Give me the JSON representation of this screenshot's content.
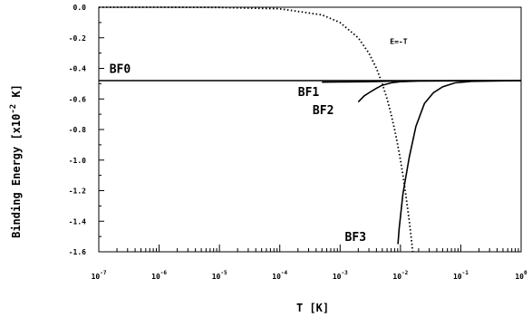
{
  "chart_data": {
    "type": "line",
    "title": "",
    "xlabel": "T [K]",
    "ylabel_text": "Binding Energy [x10",
    "ylabel_exponent": "-2",
    "ylabel_unit": " K]",
    "x_scale": "log",
    "xlim": [
      1e-07,
      1
    ],
    "ylim": [
      -1.6,
      0.0
    ],
    "grid": false,
    "x_ticks": [
      {
        "value": 1e-07,
        "base": "10",
        "exp": "-7"
      },
      {
        "value": 1e-06,
        "base": "10",
        "exp": "-6"
      },
      {
        "value": 1e-05,
        "base": "10",
        "exp": "-5"
      },
      {
        "value": 0.0001,
        "base": "10",
        "exp": "-4"
      },
      {
        "value": 0.001,
        "base": "10",
        "exp": "-3"
      },
      {
        "value": 0.01,
        "base": "10",
        "exp": "-2"
      },
      {
        "value": 0.1,
        "base": "10",
        "exp": "-1"
      },
      {
        "value": 1,
        "base": "10",
        "exp": "0"
      }
    ],
    "y_ticks": [
      {
        "value": 0.0,
        "label": "0.0"
      },
      {
        "value": -0.2,
        "label": "-0.2"
      },
      {
        "value": -0.4,
        "label": "-0.4"
      },
      {
        "value": -0.6,
        "label": "-0.6"
      },
      {
        "value": -0.8,
        "label": "-0.8"
      },
      {
        "value": -1.0,
        "label": "-1.0"
      },
      {
        "value": -1.2,
        "label": "-1.2"
      },
      {
        "value": -1.4,
        "label": "-1.4"
      },
      {
        "value": -1.6,
        "label": "-1.6"
      }
    ],
    "series": [
      {
        "name": "BF0",
        "style": "solid",
        "x": [
          1e-07,
          1e-06,
          1e-05,
          0.0001,
          0.001,
          0.01,
          0.1,
          1
        ],
        "y": [
          -0.48,
          -0.48,
          -0.48,
          -0.48,
          -0.48,
          -0.48,
          -0.48,
          -0.48
        ]
      },
      {
        "name": "BF1",
        "style": "solid",
        "x": [
          0.0005,
          0.001,
          0.002,
          0.003,
          0.005,
          0.01,
          0.1,
          1
        ],
        "y": [
          -0.49,
          -0.489,
          -0.488,
          -0.487,
          -0.485,
          -0.482,
          -0.481,
          -0.48
        ]
      },
      {
        "name": "BF2",
        "style": "solid",
        "x": [
          0.002,
          0.0025,
          0.003,
          0.004,
          0.005,
          0.007,
          0.01,
          0.02,
          0.1,
          1
        ],
        "y": [
          -0.62,
          -0.58,
          -0.56,
          -0.53,
          -0.51,
          -0.495,
          -0.487,
          -0.483,
          -0.481,
          -0.48
        ]
      },
      {
        "name": "BF3",
        "style": "solid",
        "x": [
          0.0091,
          0.0095,
          0.011,
          0.014,
          0.018,
          0.025,
          0.035,
          0.05,
          0.08,
          0.15,
          1
        ],
        "y": [
          -1.55,
          -1.45,
          -1.22,
          -0.98,
          -0.78,
          -0.63,
          -0.56,
          -0.52,
          -0.495,
          -0.485,
          -0.48
        ]
      },
      {
        "name": "E=-T",
        "style": "dotted",
        "x": [
          1e-07,
          1e-06,
          1e-05,
          0.0001,
          0.0005,
          0.001,
          0.002,
          0.003,
          0.004,
          0.005,
          0.006,
          0.007,
          0.008,
          0.009,
          0.01,
          0.011,
          0.012,
          0.013,
          0.014,
          0.015,
          0.016
        ],
        "y": [
          0,
          0,
          -0.001,
          -0.01,
          -0.05,
          -0.1,
          -0.2,
          -0.3,
          -0.4,
          -0.5,
          -0.6,
          -0.7,
          -0.8,
          -0.9,
          -1.0,
          -1.1,
          -1.2,
          -1.3,
          -1.4,
          -1.5,
          -1.6
        ]
      }
    ],
    "series_labels": [
      {
        "text": "BF0",
        "x": 1.5e-07,
        "y": -0.43
      },
      {
        "text": "BF1",
        "x": 0.0002,
        "y": -0.58
      },
      {
        "text": "BF2",
        "x": 0.00035,
        "y": -0.7
      },
      {
        "text": "BF3",
        "x": 0.0012,
        "y": -1.53
      }
    ],
    "annotations": [
      {
        "text": "E=-T",
        "x": 0.0067,
        "y": -0.24
      }
    ]
  }
}
